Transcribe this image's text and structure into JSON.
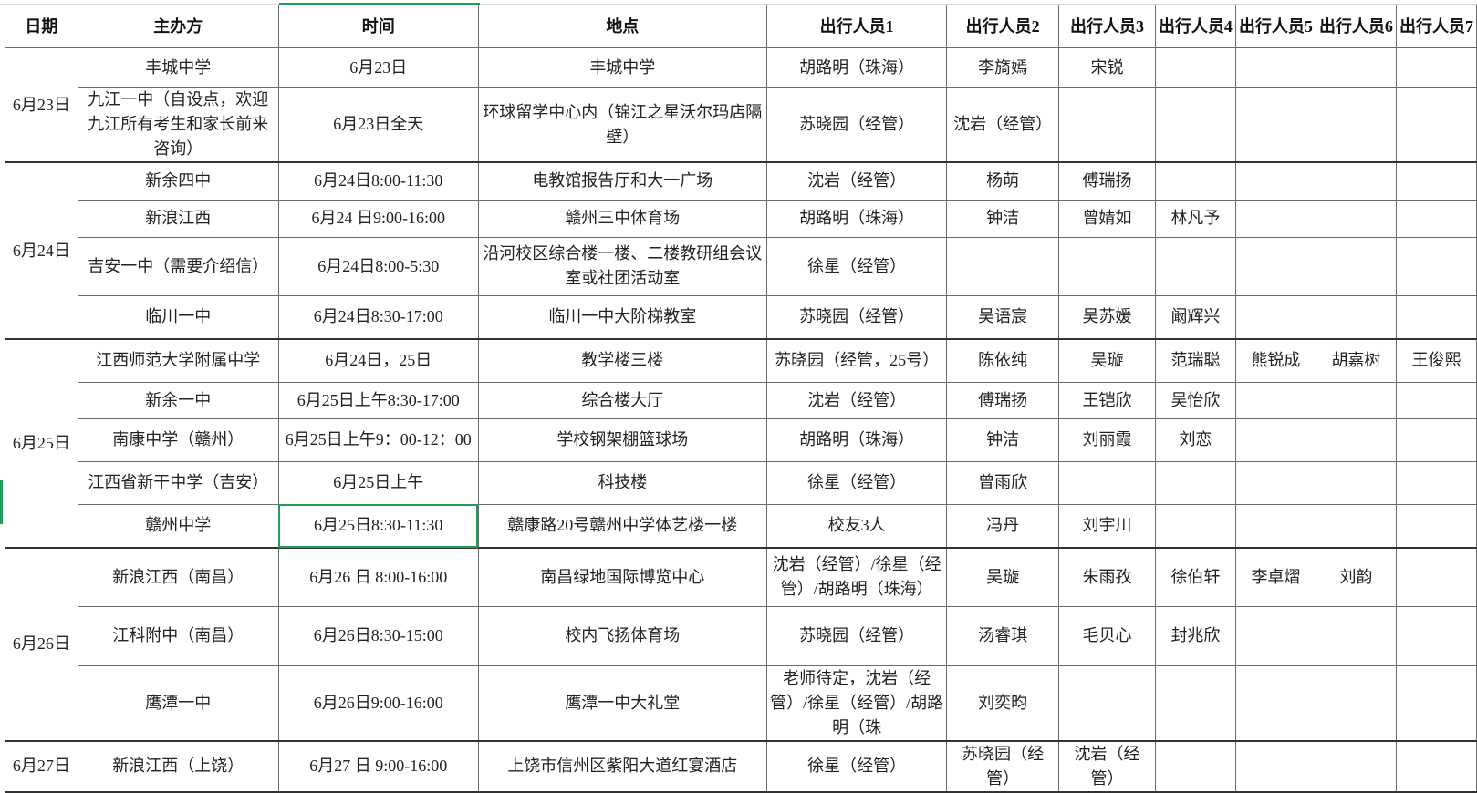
{
  "colors": {
    "selection": "#1e9e5a",
    "grid": "#6b6b6b"
  },
  "headers": [
    "日期",
    "主办方",
    "时间",
    "地点",
    "出行人员1",
    "出行人员2",
    "出行人员3",
    "出行人员4",
    "出行人员5",
    "出行人员6",
    "出行人员7"
  ],
  "selected_cell": "6月25日8:30-11:30",
  "groups": [
    {
      "date": "6月23日",
      "rows": [
        [
          "丰城中学",
          "6月23日",
          "丰城中学",
          "胡路明（珠海）",
          "李旖嫣",
          "宋锐",
          "",
          "",
          "",
          ""
        ],
        [
          "九江一中（自设点，欢迎九江所有考生和家长前来咨询）",
          "6月23日全天",
          "环球留学中心内（锦江之星沃尔玛店隔壁）",
          "苏晓园（经管）",
          "沈岩（经管）",
          "",
          "",
          "",
          "",
          ""
        ]
      ]
    },
    {
      "date": "6月24日",
      "rows": [
        [
          "新余四中",
          "6月24日8:00-11:30",
          "电教馆报告厅和大一广场",
          "沈岩（经管）",
          "杨萌",
          "傅瑞扬",
          "",
          "",
          "",
          ""
        ],
        [
          "新浪江西",
          "6月24 日9:00-16:00",
          "赣州三中体育场",
          "胡路明（珠海）",
          "钟洁",
          "曾婧如",
          "林凡予",
          "",
          "",
          ""
        ],
        [
          "吉安一中（需要介绍信）",
          "6月24日8:00-5:30",
          "沿河校区综合楼一楼、二楼教研组会议室或社团活动室",
          "徐星（经管）",
          "",
          "",
          "",
          "",
          "",
          ""
        ],
        [
          "临川一中",
          "6月24日8:30-17:00",
          "临川一中大阶梯教室",
          "苏晓园（经管）",
          "吴语宸",
          "吴苏媛",
          "阚辉兴",
          "",
          "",
          ""
        ]
      ]
    },
    {
      "date": "6月25日",
      "rows": [
        [
          "江西师范大学附属中学",
          "6月24日，25日",
          "教学楼三楼",
          "苏晓园（经管，25号）",
          "陈依纯",
          "吴璇",
          "范瑞聪",
          "熊锐成",
          "胡嘉树",
          "王俊熙"
        ],
        [
          "新余一中",
          "6月25日上午8:30-17:00",
          "综合楼大厅",
          "沈岩（经管）",
          "傅瑞扬",
          "王铠欣",
          "吴怡欣",
          "",
          "",
          ""
        ],
        [
          "南康中学（赣州）",
          "6月25日上午9：00-12：00",
          "学校钢架棚篮球场",
          "胡路明（珠海）",
          "钟洁",
          "刘丽霞",
          "刘恋",
          "",
          "",
          ""
        ],
        [
          "江西省新干中学（吉安）",
          "6月25日上午",
          "科技楼",
          "徐星（经管）",
          "曾雨欣",
          "",
          "",
          "",
          "",
          ""
        ],
        [
          "赣州中学",
          "6月25日8:30-11:30",
          "赣康路20号赣州中学体艺楼一楼",
          "校友3人",
          "冯丹",
          "刘宇川",
          "",
          "",
          "",
          ""
        ]
      ]
    },
    {
      "date": "6月26日",
      "rows": [
        [
          "新浪江西（南昌）",
          "6月26 日 8:00-16:00",
          "南昌绿地国际博览中心",
          "沈岩（经管）/徐星（经管）/胡路明（珠海）",
          "吴璇",
          "朱雨孜",
          "徐伯轩",
          "李卓熠",
          "刘韵",
          ""
        ],
        [
          "江科附中（南昌）",
          "6月26日8:30-15:00",
          "校内飞扬体育场",
          "苏晓园（经管）",
          "汤睿琪",
          "毛贝心",
          "封兆欣",
          "",
          "",
          ""
        ],
        [
          "鹰潭一中",
          "6月26日9:00-16:00",
          "鹰潭一中大礼堂",
          "老师待定，沈岩（经管）/徐星（经管）/胡路明（珠",
          "刘奕昀",
          "",
          "",
          "",
          "",
          ""
        ]
      ]
    },
    {
      "date": "6月27日",
      "rows": [
        [
          "新浪江西（上饶）",
          "6月27 日  9:00-16:00",
          "上饶市信州区紫阳大道红宴酒店",
          "徐星（经管）",
          "苏晓园（经管）",
          "沈岩（经管）",
          "",
          "",
          "",
          ""
        ]
      ]
    }
  ]
}
